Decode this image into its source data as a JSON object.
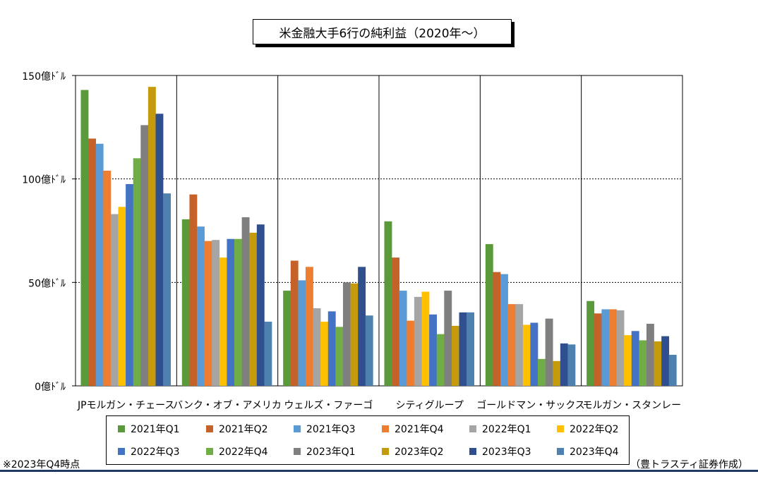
{
  "title": "米金融大手6行の純利益（2020年〜）",
  "note_left": "※2023年Q4時点",
  "note_right": "（豊トラスティ証券作成）",
  "chart_data": {
    "type": "bar",
    "title": "米金融大手6行の純利益（2020年〜）",
    "ylim": [
      0,
      150
    ],
    "ytick_values": [
      0,
      50,
      100,
      150
    ],
    "ytick_labels": [
      "0億ﾄﾞﾙ",
      "50億ﾄﾞﾙ",
      "100億ﾄﾞﾙ",
      "150億ﾄﾞﾙ"
    ],
    "grid": "horizontal dotted",
    "legend_position": "bottom",
    "categories": [
      "JPモルガン・チェース",
      "バンク・オブ・アメリカ",
      "ウェルズ・ファーゴ",
      "シティグループ",
      "ゴールドマン・サックス",
      "モルガン・スタンレー"
    ],
    "series": [
      {
        "name": "2021年Q1",
        "color": "#5b9a3a",
        "values": [
          143,
          80.5,
          46,
          79.5,
          68.5,
          41
        ]
      },
      {
        "name": "2021年Q2",
        "color": "#c5622a",
        "values": [
          119.5,
          92.5,
          60.5,
          62,
          55,
          35
        ]
      },
      {
        "name": "2021年Q3",
        "color": "#5b9bd5",
        "values": [
          117,
          77,
          51,
          46,
          54,
          37
        ]
      },
      {
        "name": "2021年Q4",
        "color": "#ed7d31",
        "values": [
          104,
          70,
          57.5,
          31.5,
          39.5,
          37
        ]
      },
      {
        "name": "2022年Q1",
        "color": "#a5a5a5",
        "values": [
          83,
          70.5,
          37.5,
          43,
          39.5,
          36.5
        ]
      },
      {
        "name": "2022年Q2",
        "color": "#ffc000",
        "values": [
          86.5,
          62,
          31,
          45.5,
          29.5,
          24.5
        ]
      },
      {
        "name": "2022年Q3",
        "color": "#4472c4",
        "values": [
          97.5,
          71,
          36,
          34.5,
          30.5,
          26.5
        ]
      },
      {
        "name": "2022年Q4",
        "color": "#70ad47",
        "values": [
          110,
          71,
          28.5,
          25,
          13,
          22
        ]
      },
      {
        "name": "2023年Q1",
        "color": "#7f7f7f",
        "values": [
          126,
          81.5,
          50,
          46,
          32.5,
          30
        ]
      },
      {
        "name": "2023年Q2",
        "color": "#c59a0c",
        "values": [
          144.5,
          74,
          49.5,
          29,
          12,
          21.5
        ]
      },
      {
        "name": "2023年Q3",
        "color": "#2f4f8f",
        "values": [
          131.5,
          78,
          57.5,
          35.5,
          20.5,
          24
        ]
      },
      {
        "name": "2023年Q4",
        "color": "#4f81b0",
        "values": [
          93,
          31,
          34,
          35.5,
          20,
          15
        ]
      }
    ]
  }
}
